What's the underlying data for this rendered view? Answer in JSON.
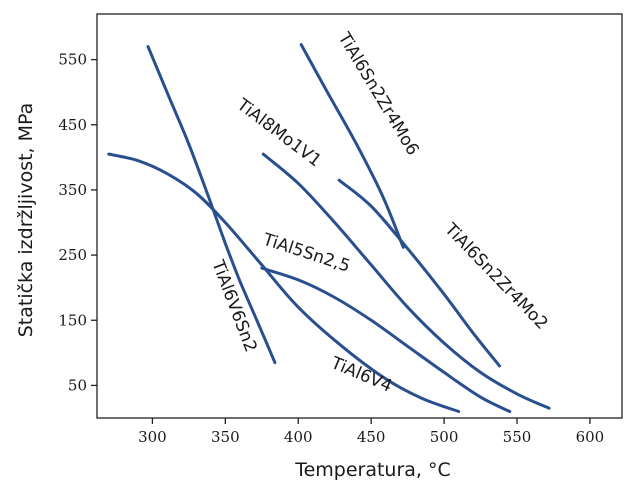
{
  "chart_data": {
    "type": "line",
    "title": "",
    "xlabel": "Temperatura, °C",
    "ylabel": "Statička izdržljivost, MPa",
    "xlim": [
      262,
      622
    ],
    "ylim": [
      0,
      620
    ],
    "xticks": [
      300,
      350,
      400,
      450,
      500,
      550,
      600
    ],
    "yticks": [
      50,
      150,
      250,
      350,
      450,
      550
    ],
    "grid": false,
    "line_color": "#2a4f8f",
    "series": [
      {
        "name": "TiAl6V6Sn2",
        "x": [
          297,
          310,
          325,
          340,
          350,
          360,
          372,
          384
        ],
        "y": [
          570,
          500,
          420,
          330,
          268,
          210,
          148,
          85
        ]
      },
      {
        "name": "TiAl6V4",
        "x": [
          270,
          290,
          310,
          330,
          350,
          375,
          400,
          430,
          460,
          485,
          510
        ],
        "y": [
          405,
          395,
          375,
          345,
          300,
          235,
          170,
          110,
          60,
          30,
          10
        ]
      },
      {
        "name": "TiAl5Sn2,5",
        "x": [
          375,
          400,
          425,
          450,
          475,
          500,
          525,
          545
        ],
        "y": [
          230,
          212,
          185,
          150,
          110,
          70,
          32,
          10
        ]
      },
      {
        "name": "TiAl8Mo1V1",
        "x": [
          376,
          400,
          425,
          450,
          475,
          500,
          525,
          550,
          572
        ],
        "y": [
          405,
          360,
          300,
          235,
          170,
          115,
          70,
          37,
          15
        ]
      },
      {
        "name": "TiAl6Sn2Zr4Mo6",
        "x": [
          402,
          420,
          440,
          458,
          472
        ],
        "y": [
          573,
          500,
          420,
          340,
          262
        ]
      },
      {
        "name": "TiAl6Sn2Zr4Mo2",
        "x": [
          428,
          450,
          475,
          500,
          520,
          538
        ],
        "y": [
          365,
          325,
          260,
          190,
          130,
          80
        ]
      }
    ],
    "labels": [
      {
        "series": "TiAl6Sn2Zr4Mo6",
        "text": "TiAl6Sn2Zr4Mo6"
      },
      {
        "series": "TiAl8Mo1V1",
        "text": "TiAl8Mo1V1"
      },
      {
        "series": "TiAl6Sn2Zr4Mo2",
        "text": "TiAl6Sn2Zr4Mo2"
      },
      {
        "series": "TiAl5Sn2,5",
        "text": "TiAl5Sn2,5"
      },
      {
        "series": "TiAl6V6Sn2",
        "text": "TiAl6V6Sn2"
      },
      {
        "series": "TiAl6V4",
        "text": "TiAl6V4"
      }
    ]
  }
}
